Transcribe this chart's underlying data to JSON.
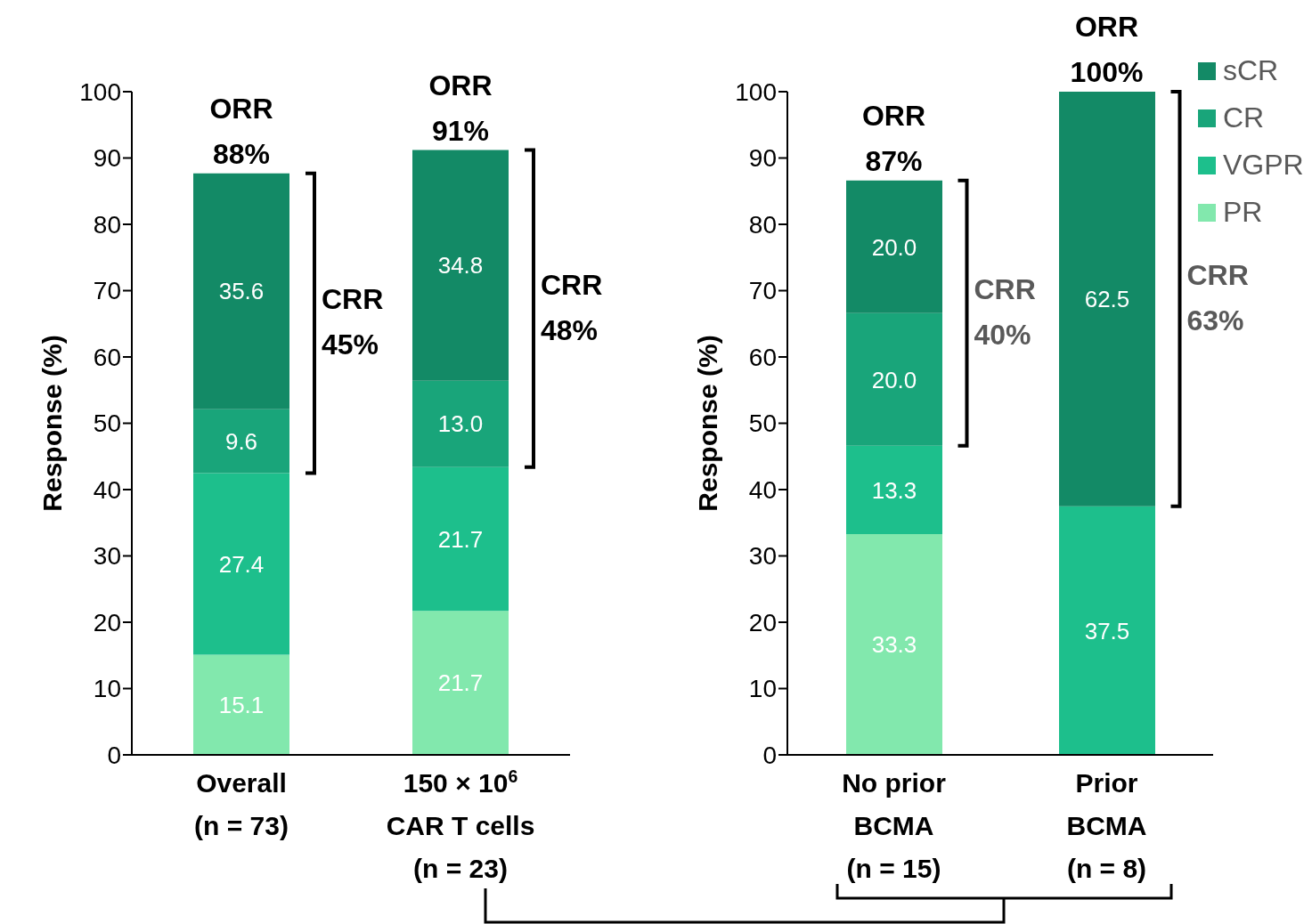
{
  "chart_data": [
    {
      "type": "bar",
      "stacked": true,
      "ylabel": "Response (%)",
      "categories": [
        "Overall\n(n = 73)",
        "150 × 10$^{6}$\nCAR T cells\n(n = 23)"
      ],
      "series": [
        {
          "color": "#82e8ad",
          "values": [
            15.1,
            21.7
          ],
          "value_labels": [
            "15.1",
            "21.7"
          ]
        },
        {
          "color": "#1dbf8c",
          "values": [
            27.4,
            21.7
          ],
          "value_labels": [
            "27.4",
            "21.7"
          ]
        },
        {
          "color": "#19a57a",
          "values": [
            9.6,
            13.0
          ],
          "value_labels": [
            "9.6",
            "13.0"
          ]
        },
        {
          "color": "#138a66",
          "values": [
            35.6,
            34.8
          ],
          "value_labels": [
            "35.6",
            "34.8"
          ]
        }
      ],
      "ylim": [
        0,
        100
      ],
      "yticks": [
        0,
        10,
        20,
        30,
        40,
        50,
        60,
        70,
        80,
        90,
        100
      ],
      "grid": false,
      "legend": false,
      "annotations": [
        {
          "text": "ORR\n88%",
          "x": "Overall\n(n = 73)",
          "y": 87.7
        },
        {
          "text": "ORR\n91%",
          "x": "150 × 10$^{6}$\nCAR T cells\n(n = 23)",
          "y": 91.2
        },
        "CRR\n45%",
        "CRR\n48%"
      ]
    },
    {
      "type": "bar",
      "stacked": true,
      "ylabel": "Response (%)",
      "categories": [
        "No prior\nBCMA\n(n = 15)",
        "Prior\nBCMA\n(n = 8)"
      ],
      "series": [
        {
          "name": "PR",
          "color": "#82e8ad",
          "values": [
            33.3,
            0
          ],
          "value_labels": [
            "33.3",
            null
          ]
        },
        {
          "name": "VGPR",
          "color": "#1dbf8c",
          "values": [
            13.3,
            37.5
          ],
          "value_labels": [
            "13.3",
            "37.5"
          ]
        },
        {
          "name": "CR",
          "color": "#19a57a",
          "values": [
            20.0,
            0
          ],
          "value_labels": [
            "20.0",
            null
          ]
        },
        {
          "name": "sCR",
          "color": "#138a66",
          "values": [
            20.0,
            62.5
          ],
          "value_labels": [
            "20.0",
            "62.5"
          ]
        }
      ],
      "ylim": [
        0,
        100
      ],
      "yticks": [
        0,
        10,
        20,
        30,
        40,
        50,
        60,
        70,
        80,
        90,
        100
      ],
      "grid": false,
      "legend": "top right",
      "annotations": [
        {
          "text": "ORR\n87%",
          "x": "No prior\nBCMA\n(n = 15)",
          "y": 86.6
        },
        {
          "text": "ORR\n100%",
          "x": "Prior\nBCMA\n(n = 8)",
          "y": 100
        },
        "CRR\n40%",
        "CRR\n63%"
      ]
    }
  ]
}
